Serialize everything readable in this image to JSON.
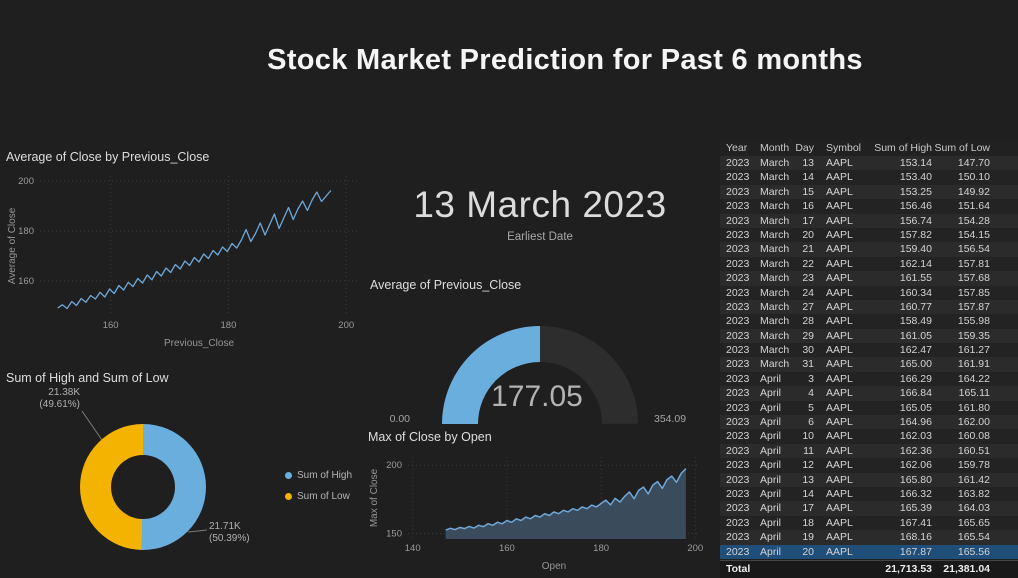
{
  "page": {
    "title": "Stock Market Prediction for Past 6 months"
  },
  "card": {
    "value": "13 March 2023",
    "label": "Earliest Date"
  },
  "chart_data": [
    {
      "type": "line",
      "title": "Average of Close by Previous_Close",
      "xlabel": "Previous_Close",
      "ylabel": "Average of Close",
      "x_ticks": [
        160,
        180,
        200
      ],
      "y_ticks": [
        160,
        180,
        200
      ],
      "xlim": [
        148,
        202
      ],
      "ylim": [
        146,
        202
      ],
      "color": "#6fa8d8",
      "points": [
        [
          151,
          149.2
        ],
        [
          151.8,
          150.5
        ],
        [
          152.6,
          149
        ],
        [
          153.4,
          151.8
        ],
        [
          154.2,
          150.2
        ],
        [
          155,
          153
        ],
        [
          155.8,
          151.5
        ],
        [
          156.6,
          154.2
        ],
        [
          157.4,
          152.8
        ],
        [
          158.2,
          155.5
        ],
        [
          159,
          153.6
        ],
        [
          159.8,
          156.8
        ],
        [
          160.6,
          155
        ],
        [
          161.4,
          158.2
        ],
        [
          162.2,
          156.4
        ],
        [
          163,
          159.5
        ],
        [
          163.8,
          157.8
        ],
        [
          164.6,
          161
        ],
        [
          165.4,
          159.2
        ],
        [
          166.2,
          162.4
        ],
        [
          167,
          160.5
        ],
        [
          167.8,
          163.8
        ],
        [
          168.6,
          162
        ],
        [
          169.4,
          165.2
        ],
        [
          170.2,
          163.4
        ],
        [
          171,
          166.6
        ],
        [
          171.8,
          164.8
        ],
        [
          172.6,
          168
        ],
        [
          173.4,
          166.2
        ],
        [
          174.2,
          169.4
        ],
        [
          175,
          167.6
        ],
        [
          175.8,
          170.8
        ],
        [
          176.6,
          169
        ],
        [
          177.4,
          172.2
        ],
        [
          178.2,
          170.4
        ],
        [
          179,
          173.6
        ],
        [
          179.8,
          171.8
        ],
        [
          180.6,
          175
        ],
        [
          181.4,
          173.2
        ],
        [
          182.2,
          176.4
        ],
        [
          183,
          180.6
        ],
        [
          183.8,
          175.8
        ],
        [
          184.6,
          179
        ],
        [
          185.4,
          183.2
        ],
        [
          186.2,
          178.4
        ],
        [
          187,
          182.6
        ],
        [
          187.8,
          186.8
        ],
        [
          188.6,
          181
        ],
        [
          189.4,
          185.2
        ],
        [
          190.2,
          189.4
        ],
        [
          191,
          184.6
        ],
        [
          191.8,
          188.8
        ],
        [
          192.6,
          192
        ],
        [
          193.4,
          188.2
        ],
        [
          194.2,
          192.4
        ],
        [
          195,
          195.6
        ],
        [
          195.8,
          191.8
        ],
        [
          196.6,
          194
        ],
        [
          197.4,
          196.2
        ]
      ]
    },
    {
      "type": "gauge",
      "title": "Average of Previous_Close",
      "value": 177.05,
      "min": 0,
      "max": 354.09,
      "value_label": "177.05",
      "min_label": "0.00",
      "max_label": "354.09",
      "color": "#6aaede"
    },
    {
      "type": "pie",
      "title": "Sum of High and Sum of Low",
      "slices": [
        {
          "name": "Sum of High",
          "value_label": "21.71K",
          "pct_label": "(50.39%)",
          "pct": 50.39,
          "color": "#6aaede"
        },
        {
          "name": "Sum of Low",
          "value_label": "21.38K",
          "pct_label": "(49.61%)",
          "pct": 49.61,
          "color": "#f3b300"
        }
      ],
      "legend_position": "right"
    },
    {
      "type": "area",
      "title": "Max of Close by Open",
      "xlabel": "Open",
      "ylabel": "Max of Close",
      "x_ticks": [
        140,
        160,
        180,
        200
      ],
      "y_ticks": [
        150,
        200
      ],
      "xlim": [
        139,
        201
      ],
      "ylim": [
        146,
        206
      ],
      "color": "#6fa8d8",
      "fill": "#41566b",
      "points": [
        [
          147,
          152.5
        ],
        [
          148,
          153.8
        ],
        [
          149,
          152.9
        ],
        [
          150,
          154.5
        ],
        [
          151,
          153.6
        ],
        [
          152,
          155.2
        ],
        [
          153,
          154
        ],
        [
          154,
          156
        ],
        [
          155,
          155.1
        ],
        [
          156,
          157.2
        ],
        [
          157,
          156
        ],
        [
          158,
          158.3
        ],
        [
          159,
          157.1
        ],
        [
          160,
          159.5
        ],
        [
          161,
          158.2
        ],
        [
          162,
          160.8
        ],
        [
          163,
          159.5
        ],
        [
          164,
          162
        ],
        [
          165,
          160.8
        ],
        [
          166,
          163.2
        ],
        [
          167,
          162
        ],
        [
          168,
          164.5
        ],
        [
          169,
          163.2
        ],
        [
          170,
          165.8
        ],
        [
          171,
          164.5
        ],
        [
          172,
          167
        ],
        [
          173,
          165.8
        ],
        [
          174,
          168.2
        ],
        [
          175,
          167
        ],
        [
          176,
          169.5
        ],
        [
          177,
          168.2
        ],
        [
          178,
          170.8
        ],
        [
          179,
          169.5
        ],
        [
          180,
          172
        ],
        [
          181,
          174.5
        ],
        [
          182,
          171
        ],
        [
          183,
          175.8
        ],
        [
          184,
          173
        ],
        [
          185,
          177.2
        ],
        [
          186,
          180.5
        ],
        [
          187,
          175.5
        ],
        [
          188,
          181.8
        ],
        [
          189,
          184
        ],
        [
          190,
          179
        ],
        [
          191,
          185.5
        ],
        [
          192,
          188
        ],
        [
          193,
          183
        ],
        [
          194,
          189.5
        ],
        [
          195,
          192
        ],
        [
          196,
          187.5
        ],
        [
          197,
          194
        ],
        [
          198,
          197.5
        ]
      ]
    }
  ],
  "table": {
    "columns": [
      "Year",
      "Month",
      "Day",
      "Symbol",
      "Sum of High",
      "Sum of Low"
    ],
    "rows": [
      [
        "2023",
        "March",
        "13",
        "AAPL",
        "153.14",
        "147.70"
      ],
      [
        "2023",
        "March",
        "14",
        "AAPL",
        "153.40",
        "150.10"
      ],
      [
        "2023",
        "March",
        "15",
        "AAPL",
        "153.25",
        "149.92"
      ],
      [
        "2023",
        "March",
        "16",
        "AAPL",
        "156.46",
        "151.64"
      ],
      [
        "2023",
        "March",
        "17",
        "AAPL",
        "156.74",
        "154.28"
      ],
      [
        "2023",
        "March",
        "20",
        "AAPL",
        "157.82",
        "154.15"
      ],
      [
        "2023",
        "March",
        "21",
        "AAPL",
        "159.40",
        "156.54"
      ],
      [
        "2023",
        "March",
        "22",
        "AAPL",
        "162.14",
        "157.81"
      ],
      [
        "2023",
        "March",
        "23",
        "AAPL",
        "161.55",
        "157.68"
      ],
      [
        "2023",
        "March",
        "24",
        "AAPL",
        "160.34",
        "157.85"
      ],
      [
        "2023",
        "March",
        "27",
        "AAPL",
        "160.77",
        "157.87"
      ],
      [
        "2023",
        "March",
        "28",
        "AAPL",
        "158.49",
        "155.98"
      ],
      [
        "2023",
        "March",
        "29",
        "AAPL",
        "161.05",
        "159.35"
      ],
      [
        "2023",
        "March",
        "30",
        "AAPL",
        "162.47",
        "161.27"
      ],
      [
        "2023",
        "March",
        "31",
        "AAPL",
        "165.00",
        "161.91"
      ],
      [
        "2023",
        "April",
        "3",
        "AAPL",
        "166.29",
        "164.22"
      ],
      [
        "2023",
        "April",
        "4",
        "AAPL",
        "166.84",
        "165.11"
      ],
      [
        "2023",
        "April",
        "5",
        "AAPL",
        "165.05",
        "161.80"
      ],
      [
        "2023",
        "April",
        "6",
        "AAPL",
        "164.96",
        "162.00"
      ],
      [
        "2023",
        "April",
        "10",
        "AAPL",
        "162.03",
        "160.08"
      ],
      [
        "2023",
        "April",
        "11",
        "AAPL",
        "162.36",
        "160.51"
      ],
      [
        "2023",
        "April",
        "12",
        "AAPL",
        "162.06",
        "159.78"
      ],
      [
        "2023",
        "April",
        "13",
        "AAPL",
        "165.80",
        "161.42"
      ],
      [
        "2023",
        "April",
        "14",
        "AAPL",
        "166.32",
        "163.82"
      ],
      [
        "2023",
        "April",
        "17",
        "AAPL",
        "165.39",
        "164.03"
      ],
      [
        "2023",
        "April",
        "18",
        "AAPL",
        "167.41",
        "165.65"
      ],
      [
        "2023",
        "April",
        "19",
        "AAPL",
        "168.16",
        "165.54"
      ]
    ],
    "partial_row": [
      "2023",
      "April",
      "20",
      "AAPL",
      "167.87",
      "165.56"
    ],
    "total": {
      "label": "Total",
      "high": "21,713.53",
      "low": "21,381.04"
    }
  }
}
